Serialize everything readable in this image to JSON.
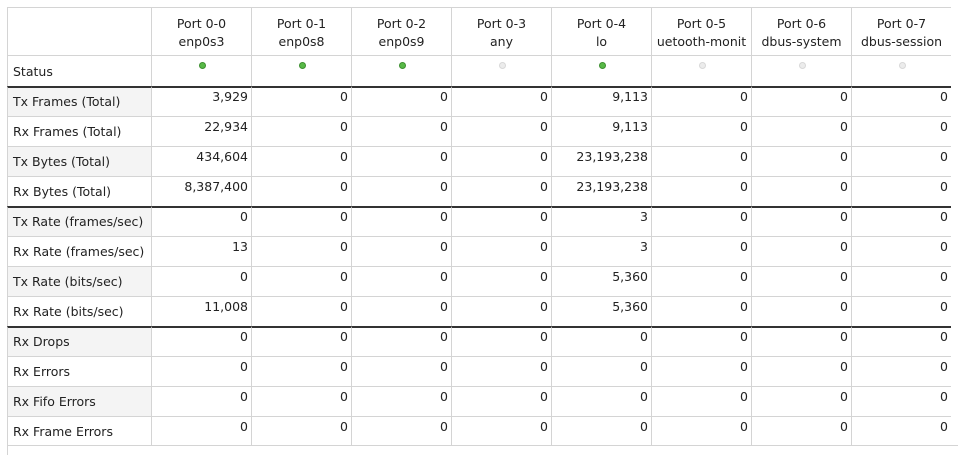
{
  "ports": [
    {
      "port": "Port 0-0",
      "iface": "enp0s3",
      "status": "up"
    },
    {
      "port": "Port 0-1",
      "iface": "enp0s8",
      "status": "up"
    },
    {
      "port": "Port 0-2",
      "iface": "enp0s9",
      "status": "up"
    },
    {
      "port": "Port 0-3",
      "iface": "any",
      "status": "down"
    },
    {
      "port": "Port 0-4",
      "iface": "lo",
      "status": "up"
    },
    {
      "port": "Port 0-5",
      "iface": "uetooth-monit",
      "status": "down"
    },
    {
      "port": "Port 0-6",
      "iface": "dbus-system",
      "status": "down"
    },
    {
      "port": "Port 0-7",
      "iface": "dbus-session",
      "status": "down"
    }
  ],
  "status_label": "Status",
  "colors": {
    "status_up": "#58b947",
    "status_down": "#ececec"
  },
  "rows": [
    {
      "label": "Tx Frames (Total)",
      "values": [
        "3,929",
        "0",
        "0",
        "0",
        "9,113",
        "0",
        "0",
        "0"
      ]
    },
    {
      "label": "Rx Frames (Total)",
      "values": [
        "22,934",
        "0",
        "0",
        "0",
        "9,113",
        "0",
        "0",
        "0"
      ]
    },
    {
      "label": "Tx Bytes (Total)",
      "values": [
        "434,604",
        "0",
        "0",
        "0",
        "23,193,238",
        "0",
        "0",
        "0"
      ]
    },
    {
      "label": "Rx Bytes (Total)",
      "values": [
        "8,387,400",
        "0",
        "0",
        "0",
        "23,193,238",
        "0",
        "0",
        "0"
      ]
    },
    {
      "label": "Tx Rate (frames/sec)",
      "values": [
        "0",
        "0",
        "0",
        "0",
        "3",
        "0",
        "0",
        "0"
      ]
    },
    {
      "label": "Rx Rate (frames/sec)",
      "values": [
        "13",
        "0",
        "0",
        "0",
        "3",
        "0",
        "0",
        "0"
      ]
    },
    {
      "label": "Tx Rate (bits/sec)",
      "values": [
        "0",
        "0",
        "0",
        "0",
        "5,360",
        "0",
        "0",
        "0"
      ]
    },
    {
      "label": "Rx Rate (bits/sec)",
      "values": [
        "11,008",
        "0",
        "0",
        "0",
        "5,360",
        "0",
        "0",
        "0"
      ]
    },
    {
      "label": "Rx Drops",
      "values": [
        "0",
        "0",
        "0",
        "0",
        "0",
        "0",
        "0",
        "0"
      ]
    },
    {
      "label": "Rx Errors",
      "values": [
        "0",
        "0",
        "0",
        "0",
        "0",
        "0",
        "0",
        "0"
      ]
    },
    {
      "label": "Rx Fifo Errors",
      "values": [
        "0",
        "0",
        "0",
        "0",
        "0",
        "0",
        "0",
        "0"
      ]
    },
    {
      "label": "Rx Frame Errors",
      "values": [
        "0",
        "0",
        "0",
        "0",
        "0",
        "0",
        "0",
        "0"
      ]
    }
  ]
}
